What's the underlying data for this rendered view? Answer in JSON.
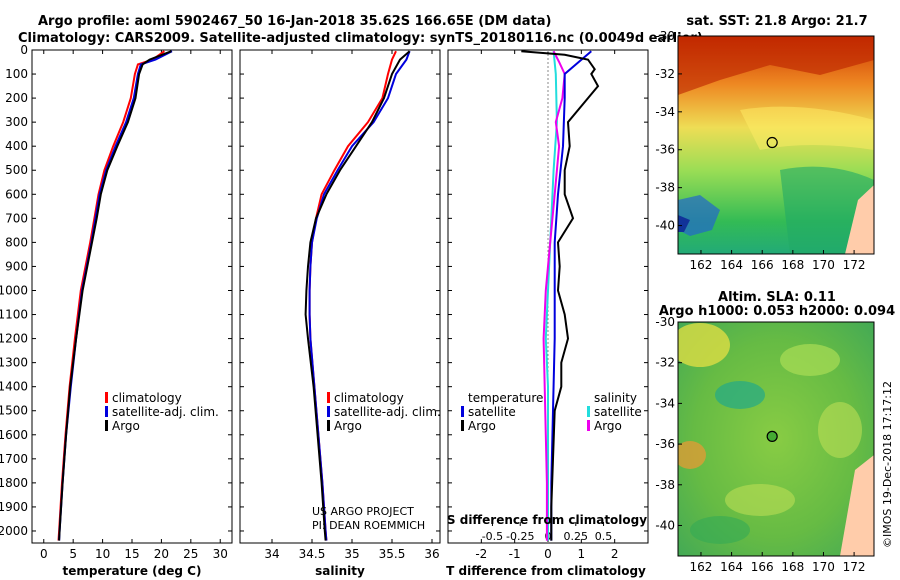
{
  "header": {
    "title_line1": "Argo profile: aoml 5902467_50 16-Jan-2018 35.62S 166.65E (DM data)",
    "title_line2": "Climatology: CARS2009. Satellite-adjusted climatology: synTS_20180116.nc (0.0049d earlier)"
  },
  "colors": {
    "climatology": "#ff0000",
    "satellite": "#0000dd",
    "argo": "#000000",
    "t_satellite": "#0000dd",
    "s_satellite": "#22dddd",
    "s_argo": "#ee00ee"
  },
  "credits": {
    "line1": "US ARGO PROJECT",
    "line2": "PI: DEAN ROEMMICH"
  },
  "copyright": "©IMOS 19-Dec-2018 17:17:12",
  "legend_profiles": [
    "climatology",
    "satellite-adj. clim.",
    "Argo"
  ],
  "legend_diff": {
    "temperature": "temperature",
    "salinity": "salinity",
    "t_items": [
      "satellite",
      "Argo"
    ],
    "s_items": [
      "satellite",
      "Argo"
    ]
  },
  "diff_inner_title": "S difference from climatology",
  "chart_data": [
    {
      "type": "line",
      "name": "temperature-profile",
      "xlabel": "temperature (deg C)",
      "xlim": [
        -2,
        32
      ],
      "ylim": [
        2050,
        0
      ],
      "x_ticks": [
        0,
        5,
        10,
        15,
        20,
        25,
        30
      ],
      "y_ticks": [
        0,
        100,
        200,
        300,
        400,
        500,
        600,
        700,
        800,
        900,
        1000,
        1100,
        1200,
        1300,
        1400,
        1500,
        1600,
        1700,
        1800,
        1900,
        2000
      ],
      "depth": [
        5,
        40,
        60,
        100,
        200,
        300,
        400,
        500,
        600,
        700,
        800,
        900,
        1000,
        1200,
        1400,
        1600,
        1800,
        2000,
        2040
      ],
      "series": [
        {
          "name": "climatology",
          "values": [
            20.5,
            18.5,
            16.0,
            15.5,
            14.8,
            13.5,
            11.8,
            10.3,
            9.3,
            8.6,
            7.9,
            7.1,
            6.3,
            5.3,
            4.4,
            3.7,
            3.1,
            2.6,
            2.5
          ]
        },
        {
          "name": "satellite-adj. clim.",
          "values": [
            21.8,
            19.0,
            16.5,
            16.0,
            15.3,
            14.0,
            12.2,
            10.6,
            9.5,
            8.8,
            8.1,
            7.3,
            6.5,
            5.5,
            4.6,
            3.8,
            3.2,
            2.7,
            2.6
          ]
        },
        {
          "name": "Argo",
          "values": [
            21.7,
            18.0,
            16.8,
            16.2,
            15.6,
            14.3,
            12.5,
            10.8,
            9.7,
            9.0,
            8.2,
            7.4,
            6.6,
            5.5,
            4.5,
            3.8,
            3.2,
            2.7,
            2.6
          ]
        }
      ]
    },
    {
      "type": "line",
      "name": "salinity-profile",
      "xlabel": "salinity",
      "xlim": [
        33.6,
        36.1
      ],
      "ylim": [
        2050,
        0
      ],
      "x_ticks": [
        34,
        34.5,
        35,
        35.5,
        36
      ],
      "depth": [
        5,
        40,
        100,
        200,
        300,
        400,
        500,
        600,
        700,
        800,
        900,
        1000,
        1100,
        1200,
        1400,
        1600,
        1800,
        2000,
        2040
      ],
      "series": [
        {
          "name": "climatology",
          "values": [
            35.55,
            35.5,
            35.45,
            35.38,
            35.2,
            34.95,
            34.78,
            34.62,
            34.55,
            34.5,
            34.48,
            34.47,
            34.47,
            34.48,
            34.53,
            34.58,
            34.63,
            34.67,
            34.68
          ]
        },
        {
          "name": "satellite-adj. clim.",
          "values": [
            35.72,
            35.68,
            35.55,
            35.45,
            35.27,
            35.0,
            34.82,
            34.65,
            34.56,
            34.5,
            34.48,
            34.47,
            34.47,
            34.48,
            34.53,
            34.58,
            34.63,
            34.67,
            34.68
          ]
        },
        {
          "name": "Argo",
          "values": [
            35.72,
            35.6,
            35.5,
            35.4,
            35.25,
            35.05,
            34.85,
            34.68,
            34.55,
            34.48,
            34.45,
            34.43,
            34.42,
            34.45,
            34.52,
            34.57,
            34.62,
            34.66,
            34.67
          ]
        }
      ]
    },
    {
      "type": "line",
      "name": "difference-profile",
      "xlabel": "T difference from climatology",
      "x2label": "S difference from climatology",
      "xlim": [
        -3,
        3
      ],
      "x2lim": [
        -0.9,
        0.9
      ],
      "ylim": [
        2050,
        0
      ],
      "x_ticks": [
        -2,
        -1,
        0,
        1,
        2
      ],
      "x2_ticks": [
        -0.5,
        -0.25,
        0,
        0.25,
        0.5
      ],
      "x2_tick_labels": [
        "-0.5",
        "-0.25",
        "0",
        "0.25",
        "0.5"
      ],
      "series_T": [
        {
          "name": "satellite",
          "depth": [
            5,
            100,
            200,
            400,
            600,
            800,
            1000,
            1200,
            1500,
            1800,
            2040
          ],
          "values": [
            1.3,
            0.5,
            0.5,
            0.45,
            0.3,
            0.2,
            0.2,
            0.2,
            0.15,
            0.1,
            0.1
          ]
        },
        {
          "name": "Argo",
          "depth": [
            5,
            20,
            40,
            80,
            100,
            150,
            200,
            300,
            400,
            500,
            600,
            700,
            800,
            900,
            1000,
            1100,
            1200,
            1300,
            1400,
            1500,
            1700,
            1900,
            2040
          ],
          "values": [
            -0.8,
            0.5,
            1.2,
            1.4,
            1.3,
            1.5,
            1.2,
            0.6,
            0.65,
            0.5,
            0.5,
            0.75,
            0.3,
            0.35,
            0.3,
            0.5,
            0.6,
            0.4,
            0.4,
            0.2,
            0.15,
            0.1,
            0.1
          ]
        }
      ],
      "series_S": [
        {
          "name": "satellite",
          "depth": [
            5,
            100,
            300,
            500,
            800,
            1000,
            1200,
            1400,
            1600,
            1800,
            2040
          ],
          "values": [
            0.05,
            0.07,
            0.08,
            0.05,
            0.02,
            0.0,
            -0.02,
            0.0,
            0.0,
            0.0,
            0.0
          ]
        },
        {
          "name": "Argo",
          "depth": [
            5,
            50,
            100,
            200,
            300,
            400,
            600,
            800,
            1000,
            1200,
            1400,
            1600,
            1800,
            2040
          ],
          "values": [
            0.05,
            0.1,
            0.15,
            0.13,
            0.07,
            0.1,
            0.06,
            0.02,
            -0.02,
            -0.04,
            -0.03,
            -0.02,
            -0.01,
            -0.01
          ]
        }
      ]
    },
    {
      "type": "heatmap",
      "name": "sst-map",
      "title": "sat. SST: 21.8 Argo: 21.7",
      "xlim": [
        160.5,
        173.3
      ],
      "ylim": [
        -41.5,
        -30
      ],
      "x_ticks": [
        162,
        164,
        166,
        168,
        170,
        172
      ],
      "y_ticks": [
        -30,
        -32,
        -34,
        -36,
        -38,
        -40
      ],
      "marker": {
        "lon": 166.65,
        "lat": -35.62
      }
    },
    {
      "type": "heatmap",
      "name": "sla-map",
      "title_line1": "Altim. SLA: 0.11",
      "title_line2": "Argo h1000: 0.053 h2000: 0.094",
      "xlim": [
        160.5,
        173.3
      ],
      "ylim": [
        -41.5,
        -30
      ],
      "x_ticks": [
        162,
        164,
        166,
        168,
        170,
        172
      ],
      "y_ticks": [
        -30,
        -32,
        -34,
        -36,
        -38,
        -40
      ],
      "marker": {
        "lon": 166.65,
        "lat": -35.62
      }
    }
  ]
}
